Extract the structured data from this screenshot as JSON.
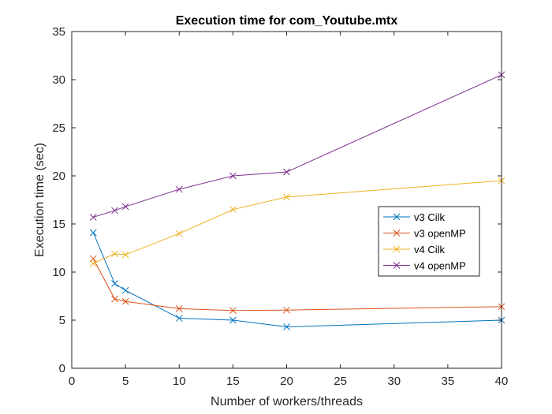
{
  "chart_data": {
    "type": "line",
    "title": "Execution time for com_Youtube.mtx",
    "xlabel": "Number of workers/threads",
    "ylabel": "Execution time (sec)",
    "xlim": [
      0,
      40
    ],
    "ylim": [
      0,
      35
    ],
    "xticks": [
      0,
      5,
      10,
      15,
      20,
      25,
      30,
      35,
      40
    ],
    "yticks": [
      0,
      5,
      10,
      15,
      20,
      25,
      30,
      35
    ],
    "grid": false,
    "legend_position": "right-middle",
    "x": [
      2,
      4,
      5,
      10,
      15,
      20,
      40
    ],
    "series": [
      {
        "name": "v3 Cilk",
        "color": "#0072BD",
        "marker": "x",
        "values": [
          14.1,
          8.8,
          8.1,
          5.2,
          5.0,
          4.3,
          5.0
        ]
      },
      {
        "name": "v3 openMP",
        "color": "#D95319",
        "marker": "x",
        "values": [
          11.4,
          7.2,
          6.95,
          6.2,
          6.0,
          6.05,
          6.4
        ]
      },
      {
        "name": "v4 Cilk",
        "color": "#EDB120",
        "marker": "x",
        "values": [
          10.9,
          11.9,
          11.8,
          14.0,
          16.5,
          17.8,
          19.5
        ]
      },
      {
        "name": "v4 openMP",
        "color": "#7E2F8E",
        "marker": "x",
        "values": [
          15.7,
          16.4,
          16.8,
          18.6,
          20.0,
          20.4,
          30.5
        ]
      }
    ]
  }
}
